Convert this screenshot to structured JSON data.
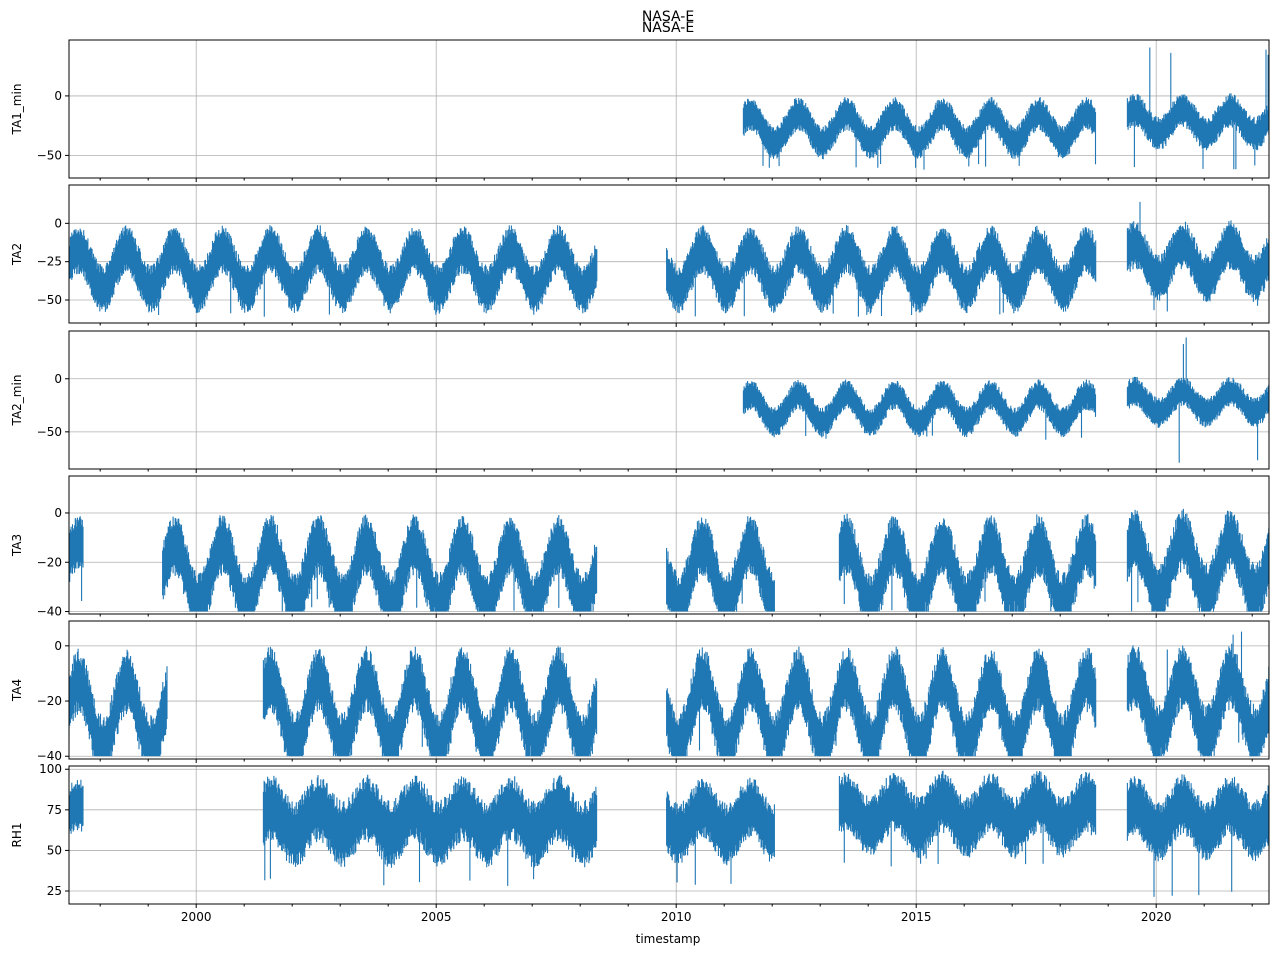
{
  "figure": {
    "suptitle": "NASA-E",
    "subtitle": "NASA-E",
    "xlabel": "timestamp"
  },
  "colors": {
    "series": "#1f77b4",
    "grid": "#b0b0b0"
  },
  "chart_data": {
    "type": "line",
    "x_axis": {
      "range": [
        1997.35,
        2022.35
      ],
      "major_ticks": [
        2000,
        2005,
        2010,
        2015,
        2020
      ],
      "major_tick_labels": [
        "2000",
        "2005",
        "2010",
        "2015",
        "2020"
      ],
      "label": "timestamp",
      "grid": true
    },
    "subplots": [
      {
        "ylabel": "TA1_min",
        "ylim": [
          -69,
          47
        ],
        "yticks": [
          0,
          -50
        ],
        "ytick_labels": [
          "0",
          "−50"
        ],
        "segments": [
          {
            "start": 2011.4,
            "end": 2018.75,
            "base": -27,
            "amp": 12,
            "spread": 18,
            "spike_lo": -62
          },
          {
            "start": 2019.4,
            "end": 2022.35,
            "base": -22,
            "amp": 10,
            "spread": 18,
            "spike_lo": -62,
            "spike_hi": 42
          }
        ]
      },
      {
        "ylabel": "TA2",
        "ylim": [
          -65,
          25
        ],
        "yticks": [
          0,
          -25,
          -50
        ],
        "ytick_labels": [
          "0",
          "−25",
          "−50"
        ],
        "segments": [
          {
            "start": 1997.35,
            "end": 2008.35,
            "base": -30,
            "amp": 13,
            "spread": 20,
            "spike_lo": -62
          },
          {
            "start": 2009.8,
            "end": 2018.75,
            "base": -30,
            "amp": 13,
            "spread": 20,
            "spike_lo": -62
          },
          {
            "start": 2019.4,
            "end": 2022.35,
            "base": -25,
            "amp": 11,
            "spread": 20,
            "spike_lo": -58,
            "spike_hi": 20
          }
        ]
      },
      {
        "ylabel": "TA2_min",
        "ylim": [
          -85,
          45
        ],
        "yticks": [
          0,
          -50
        ],
        "ytick_labels": [
          "0",
          "−50"
        ],
        "segments": [
          {
            "start": 2011.4,
            "end": 2018.75,
            "base": -28,
            "amp": 13,
            "spread": 18,
            "spike_lo": -58
          },
          {
            "start": 2019.4,
            "end": 2022.35,
            "base": -22,
            "amp": 10,
            "spread": 18,
            "spike_lo": -80,
            "spike_hi": 40
          }
        ]
      },
      {
        "ylabel": "TA3",
        "ylim": [
          -41,
          15
        ],
        "yticks": [
          0,
          -20,
          -40
        ],
        "ytick_labels": [
          "0",
          "−20",
          "−40"
        ],
        "clip_low": -40,
        "segments": [
          {
            "start": 1997.35,
            "end": 1997.65,
            "base": -22,
            "amp": 10,
            "spread": 14,
            "spike_lo": -39
          },
          {
            "start": 1999.3,
            "end": 2008.35,
            "base": -25,
            "amp": 12,
            "spread": 16,
            "spike_lo": -40
          },
          {
            "start": 2009.8,
            "end": 2012.05,
            "base": -25,
            "amp": 12,
            "spread": 16,
            "spike_lo": -40
          },
          {
            "start": 2013.4,
            "end": 2018.75,
            "base": -25,
            "amp": 12,
            "spread": 16,
            "spike_lo": -40
          },
          {
            "start": 2019.4,
            "end": 2022.35,
            "base": -22,
            "amp": 11,
            "spread": 16,
            "spike_lo": -40,
            "spike_hi": 13
          }
        ]
      },
      {
        "ylabel": "TA4",
        "ylim": [
          -41,
          9
        ],
        "yticks": [
          0,
          -20,
          -40
        ],
        "ytick_labels": [
          "0",
          "−20",
          "−40"
        ],
        "clip_low": -40,
        "segments": [
          {
            "start": 1997.35,
            "end": 1999.4,
            "base": -25,
            "amp": 12,
            "spread": 15,
            "spike_lo": -40
          },
          {
            "start": 2001.4,
            "end": 2008.35,
            "base": -24,
            "amp": 12,
            "spread": 15,
            "spike_lo": -40
          },
          {
            "start": 2009.8,
            "end": 2018.75,
            "base": -24,
            "amp": 12,
            "spread": 15,
            "spike_lo": -40
          },
          {
            "start": 2019.4,
            "end": 2022.35,
            "base": -22,
            "amp": 11,
            "spread": 15,
            "spike_lo": -40,
            "spike_hi": 8
          }
        ]
      },
      {
        "ylabel": "RH1",
        "ylim": [
          17,
          102
        ],
        "yticks": [
          100,
          75,
          50,
          25
        ],
        "ytick_labels": [
          "100",
          "75",
          "50",
          "25"
        ],
        "clip_high": 100,
        "segments": [
          {
            "start": 1997.35,
            "end": 1997.65,
            "base": 72,
            "amp": 6,
            "spread": 20,
            "spike_lo": 50
          },
          {
            "start": 2001.4,
            "end": 2008.35,
            "base": 68,
            "amp": 8,
            "spread": 26,
            "spike_lo": 28
          },
          {
            "start": 2009.8,
            "end": 2012.05,
            "base": 68,
            "amp": 8,
            "spread": 24,
            "spike_lo": 27
          },
          {
            "start": 2013.4,
            "end": 2018.75,
            "base": 72,
            "amp": 8,
            "spread": 24,
            "spike_lo": 40
          },
          {
            "start": 2019.4,
            "end": 2022.35,
            "base": 70,
            "amp": 8,
            "spread": 24,
            "spike_lo": 21
          }
        ]
      }
    ]
  }
}
